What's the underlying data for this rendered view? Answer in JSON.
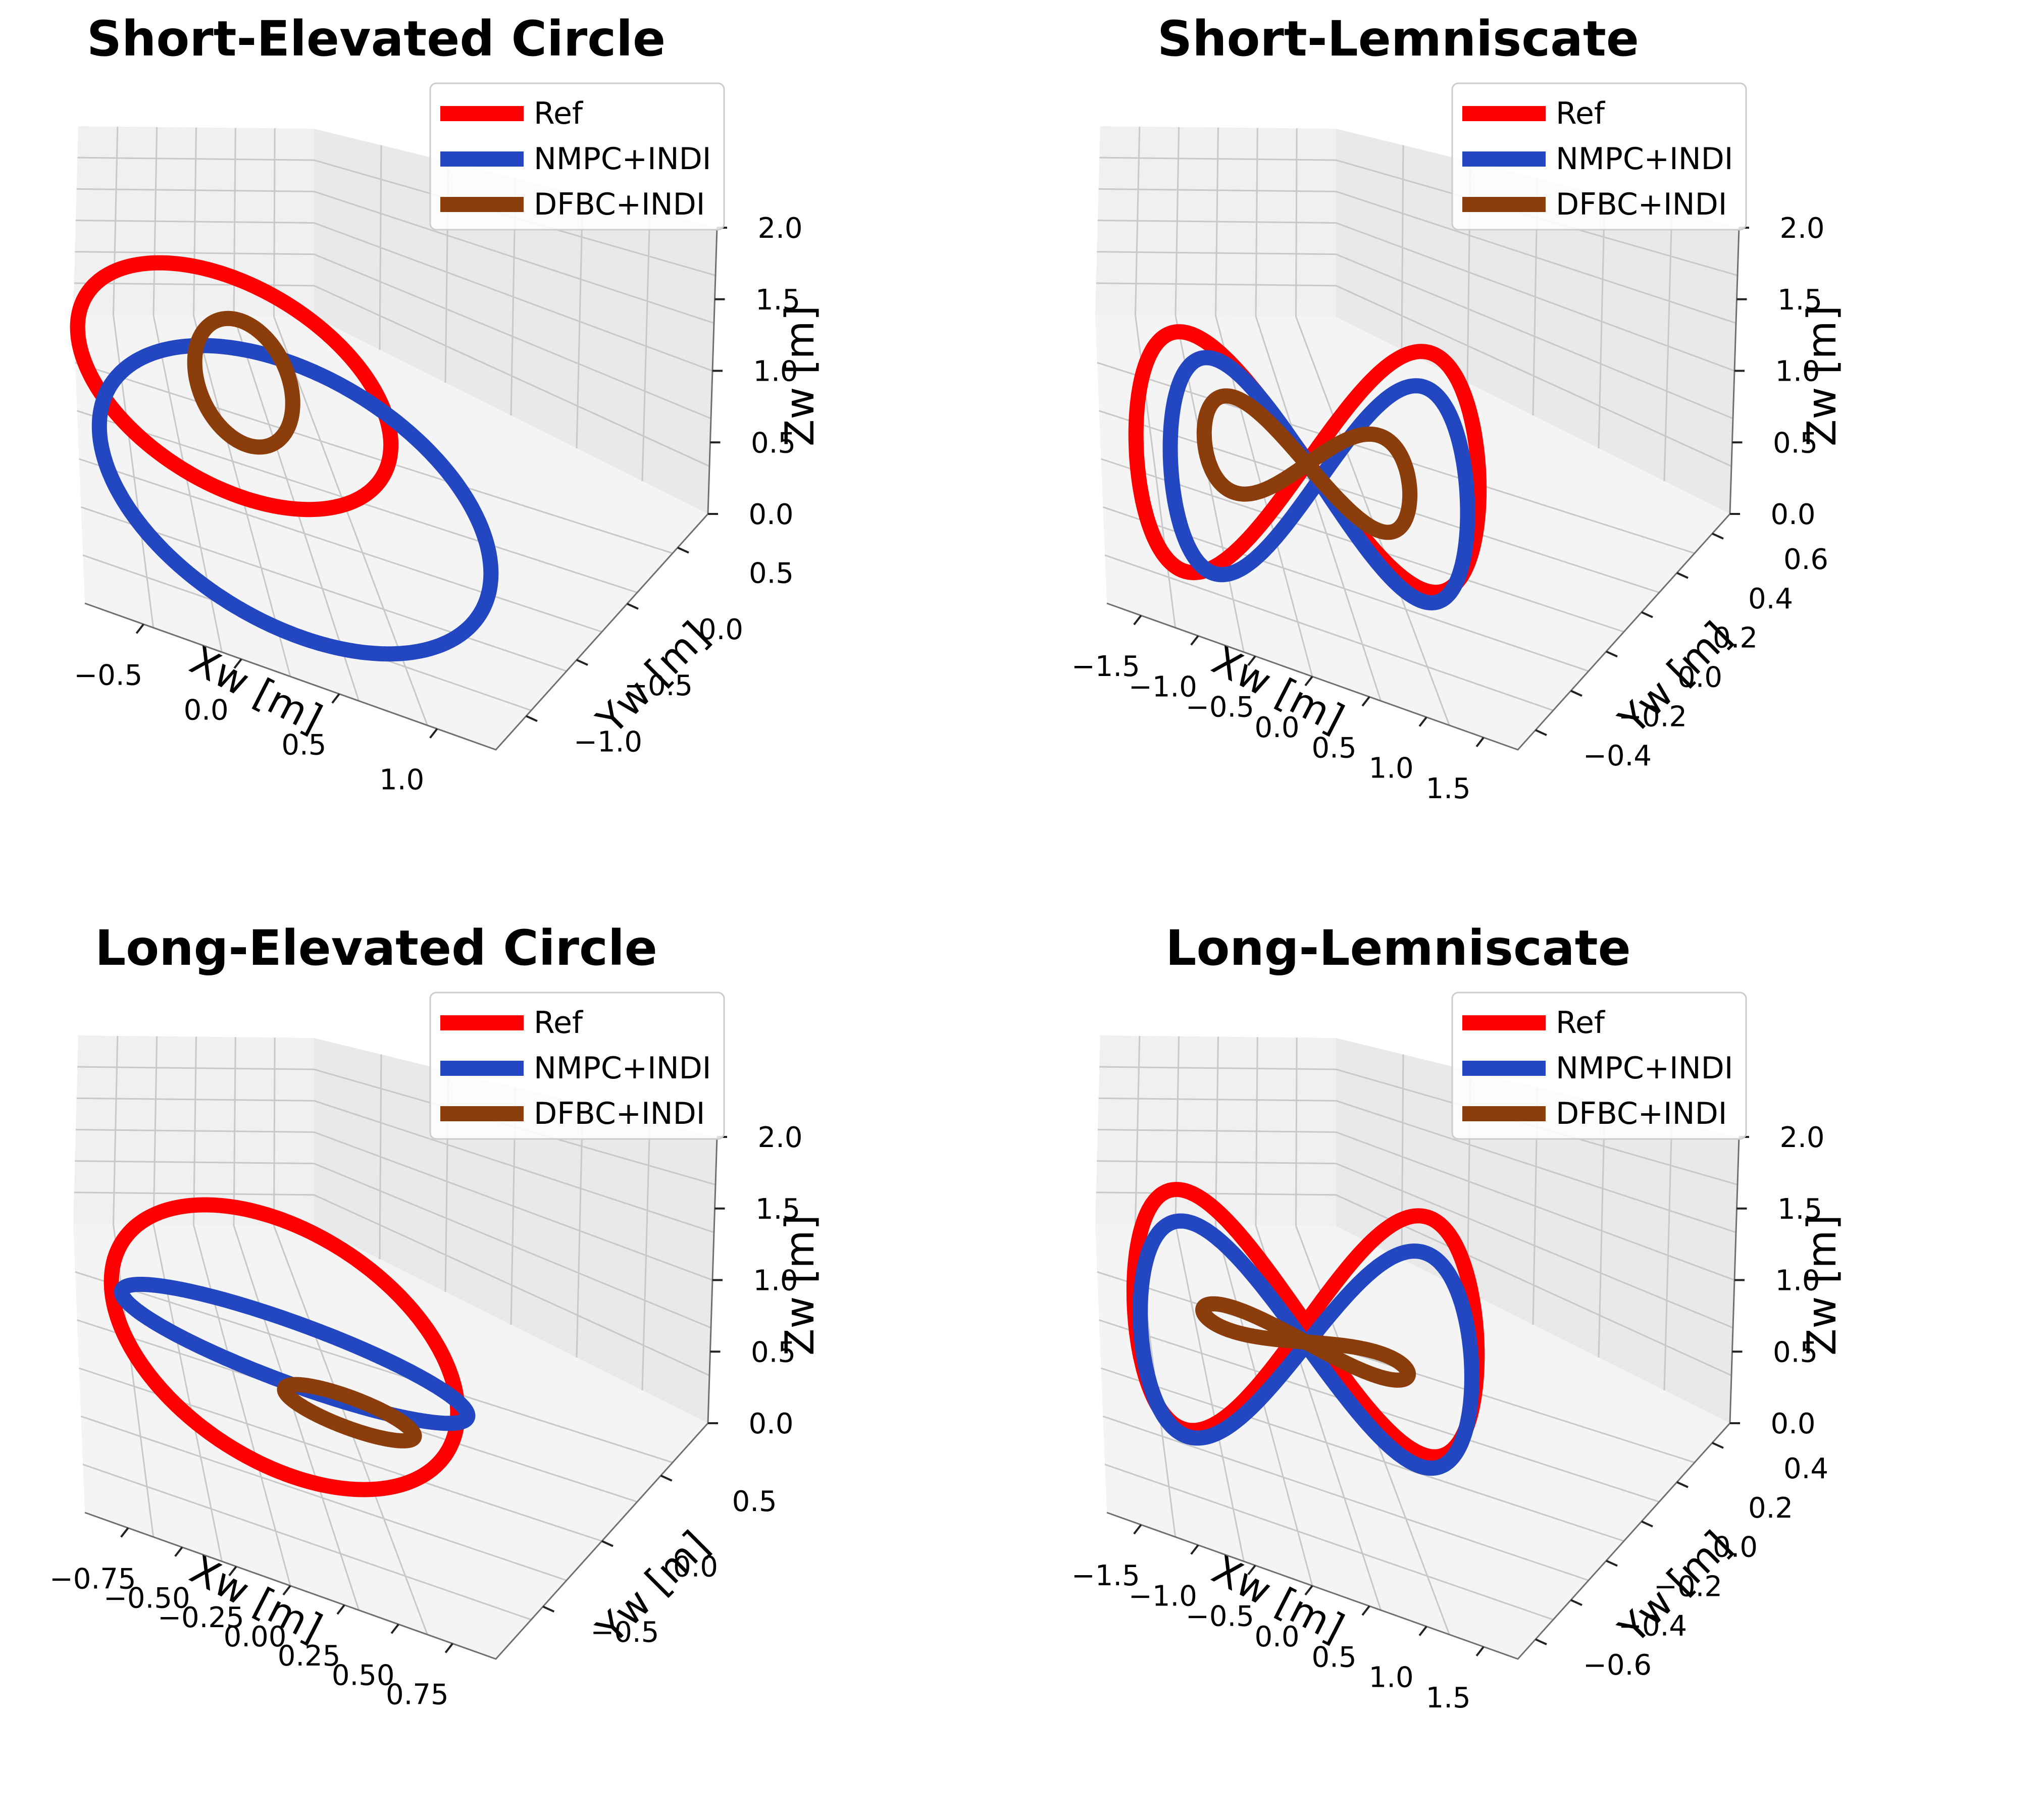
{
  "colors": {
    "Ref": "#ff0000",
    "NMPC+INDI": "#2346c1",
    "DFBC+INDI": "#8b3d0c"
  },
  "chart_data": [
    {
      "type": "line",
      "title": "Short-Elevated Circle",
      "xlabel": "Xw [m]",
      "ylabel": "Yw [m]",
      "zlabel": "Zw [m]",
      "xticks": [
        "−0.5",
        "0.0",
        "0.5",
        "1.0"
      ],
      "yticks": [
        "−1.0",
        "−0.5",
        "0.0",
        "0.5"
      ],
      "zticks": [
        "0.0",
        "0.5",
        "1.0",
        "1.5",
        "2.0"
      ],
      "xlim": [
        -0.8,
        1.3
      ],
      "ylim": [
        -1.3,
        0.8
      ],
      "zlim": [
        0,
        2
      ],
      "legend": "upper-right",
      "grid": true,
      "series": [
        {
          "name": "Ref",
          "shape": "circle",
          "cx": 0.0,
          "cy": 0.0,
          "z": 1.0,
          "rx": 0.8,
          "ry": 0.8
        },
        {
          "name": "NMPC+INDI",
          "shape": "circle",
          "cx": 0.3,
          "cy": -0.4,
          "z": 0.6,
          "rx": 1.0,
          "ry": 1.0
        },
        {
          "name": "DFBC+INDI",
          "shape": "circle",
          "cx": 0.05,
          "cy": 0.05,
          "z": 1.0,
          "rx": 0.25,
          "ry": 0.45
        }
      ]
    },
    {
      "type": "line",
      "title": "Short-Lemniscate",
      "xlabel": "Xw [m]",
      "ylabel": "Yw [m]",
      "zlabel": "Zw [m]",
      "xticks": [
        "−1.5",
        "−1.0",
        "−0.5",
        "0.0",
        "0.5",
        "1.0",
        "1.5"
      ],
      "yticks": [
        "−0.4",
        "−0.2",
        "0.0",
        "0.2",
        "0.4",
        "0.6"
      ],
      "zticks": [
        "0.0",
        "0.5",
        "1.0",
        "1.5",
        "2.0"
      ],
      "xlim": [
        -1.8,
        1.8
      ],
      "ylim": [
        -0.5,
        0.7
      ],
      "zlim": [
        0,
        2
      ],
      "legend": "upper-right",
      "grid": true,
      "series": [
        {
          "name": "Ref",
          "shape": "lemniscate",
          "cx": 0.0,
          "cy": 0.0,
          "z": 1.0,
          "rx": 1.5,
          "ry": 0.5,
          "zamp": 0.5
        },
        {
          "name": "NMPC+INDI",
          "shape": "lemniscate",
          "cx": 0.1,
          "cy": 0.0,
          "z": 0.85,
          "rx": 1.3,
          "ry": 0.45,
          "zamp": 0.35
        },
        {
          "name": "DFBC+INDI",
          "shape": "lemniscate",
          "cx": 0.0,
          "cy": 0.05,
          "z": 0.85,
          "rx": 0.9,
          "ry": 0.2,
          "zamp": 0.1
        }
      ]
    },
    {
      "type": "line",
      "title": "Long-Elevated Circle",
      "xlabel": "Xw [m]",
      "ylabel": "Yw [m]",
      "zlabel": "Zw [m]",
      "xticks": [
        "−0.75",
        "−0.50",
        "−0.25",
        "0.00",
        "0.25",
        "0.50",
        "0.75"
      ],
      "yticks": [
        "−0.5",
        "0.0",
        "0.5"
      ],
      "zticks": [
        "0.0",
        "0.5",
        "1.0",
        "1.5",
        "2.0"
      ],
      "xlim": [
        -0.95,
        0.95
      ],
      "ylim": [
        -0.9,
        0.9
      ],
      "zlim": [
        0,
        2
      ],
      "legend": "upper-right",
      "grid": true,
      "series": [
        {
          "name": "Ref",
          "shape": "circle",
          "cx": 0.0,
          "cy": 0.0,
          "z": 1.0,
          "rx": 0.8,
          "ry": 0.8
        },
        {
          "name": "NMPC+INDI",
          "shape": "circle",
          "cx": 0.05,
          "cy": 0.1,
          "z": 0.8,
          "rx": 0.8,
          "ry": 0.2
        },
        {
          "name": "DFBC+INDI",
          "shape": "circle",
          "cx": 0.3,
          "cy": 0.0,
          "z": 0.55,
          "rx": 0.3,
          "ry": 0.1
        }
      ]
    },
    {
      "type": "line",
      "title": "Long-Lemniscate",
      "xlabel": "Xw [m]",
      "ylabel": "Yw [m]",
      "zlabel": "Zw [m]",
      "xticks": [
        "−1.5",
        "−1.0",
        "−0.5",
        "0.0",
        "0.5",
        "1.0",
        "1.5"
      ],
      "yticks": [
        "−0.6",
        "−0.4",
        "−0.2",
        "0.0",
        "0.2",
        "0.4"
      ],
      "zticks": [
        "0.0",
        "0.5",
        "1.0",
        "1.5",
        "2.0"
      ],
      "xlim": [
        -1.8,
        1.8
      ],
      "ylim": [
        -0.7,
        0.5
      ],
      "zlim": [
        0,
        2
      ],
      "legend": "upper-right",
      "grid": true,
      "series": [
        {
          "name": "Ref",
          "shape": "lemniscate",
          "cx": 0.0,
          "cy": 0.0,
          "z": 1.0,
          "rx": 1.5,
          "ry": 0.5,
          "zamp": 0.45
        },
        {
          "name": "NMPC+INDI",
          "shape": "lemniscate",
          "cx": 0.0,
          "cy": -0.05,
          "z": 0.9,
          "rx": 1.45,
          "ry": 0.45,
          "zamp": 0.4
        },
        {
          "name": "DFBC+INDI",
          "shape": "lemniscate",
          "cx": 0.0,
          "cy": 0.0,
          "z": 0.8,
          "rx": 0.9,
          "ry": 0.05,
          "zamp": 0.05
        }
      ]
    }
  ]
}
